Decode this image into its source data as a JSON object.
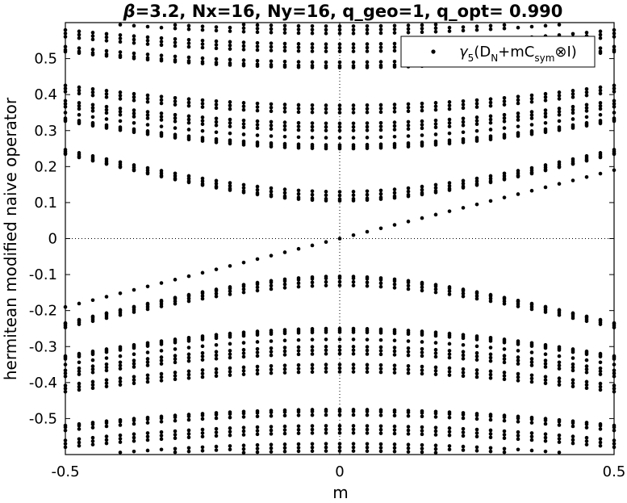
{
  "chart_data": {
    "type": "scatter",
    "title_prefix": "β",
    "title_rest": "=3.2, Nx=16, Ny=16, q_geo=1, q_opt= 0.990",
    "xlabel": "m",
    "ylabel": "hermitean modified naive operator",
    "xlim": [
      -0.5,
      0.5
    ],
    "ylim": [
      -0.6,
      0.6
    ],
    "xticks": [
      -0.5,
      0,
      0.5
    ],
    "xtick_labels": [
      "-0.5",
      "0",
      "0.5"
    ],
    "yticks": [
      0.5,
      0.4,
      0.3,
      0.2,
      0.1,
      0,
      -0.1,
      -0.2,
      -0.3,
      -0.4,
      -0.5
    ],
    "ytick_labels": [
      "0.5",
      "0.4",
      "0.3",
      "0.2",
      "0.1",
      "0",
      "-0.1",
      "-0.2",
      "-0.3",
      "-0.4",
      "-0.5"
    ],
    "grid": false,
    "zero_lines": "dotted",
    "legend_position": "top-right",
    "series": [
      {
        "name": "γ5(DN+mCsym⊗I)",
        "marker": "dot",
        "color": "#000000",
        "m_values": [
          -0.5,
          -0.475,
          -0.45,
          -0.425,
          -0.4,
          -0.375,
          -0.35,
          -0.325,
          -0.3,
          -0.275,
          -0.25,
          -0.225,
          -0.2,
          -0.175,
          -0.15,
          -0.125,
          -0.1,
          -0.075,
          -0.05,
          -0.025,
          0,
          0.025,
          0.05,
          0.075,
          0.1,
          0.125,
          0.15,
          0.175,
          0.2,
          0.225,
          0.25,
          0.275,
          0.3,
          0.325,
          0.35,
          0.375,
          0.4,
          0.425,
          0.45,
          0.475,
          0.5
        ],
        "eigenvalue_bands_at_m0": [
          0.0,
          0.105,
          0.11,
          0.12,
          0.13,
          0.25,
          0.255,
          0.26,
          0.28,
          0.3,
          0.31,
          0.32,
          0.35,
          0.36,
          0.37,
          0.475,
          0.48,
          0.49,
          0.52,
          0.53,
          0.54,
          0.57,
          0.58,
          0.59,
          -0.105,
          -0.11,
          -0.12,
          -0.13,
          -0.25,
          -0.255,
          -0.26,
          -0.28,
          -0.3,
          -0.31,
          -0.32,
          -0.35,
          -0.36,
          -0.37,
          -0.475,
          -0.48,
          -0.49,
          -0.52,
          -0.53,
          -0.54,
          -0.57,
          -0.58,
          -0.59
        ],
        "dispersion": "sqrt(e0^2 + m^2)"
      }
    ]
  }
}
